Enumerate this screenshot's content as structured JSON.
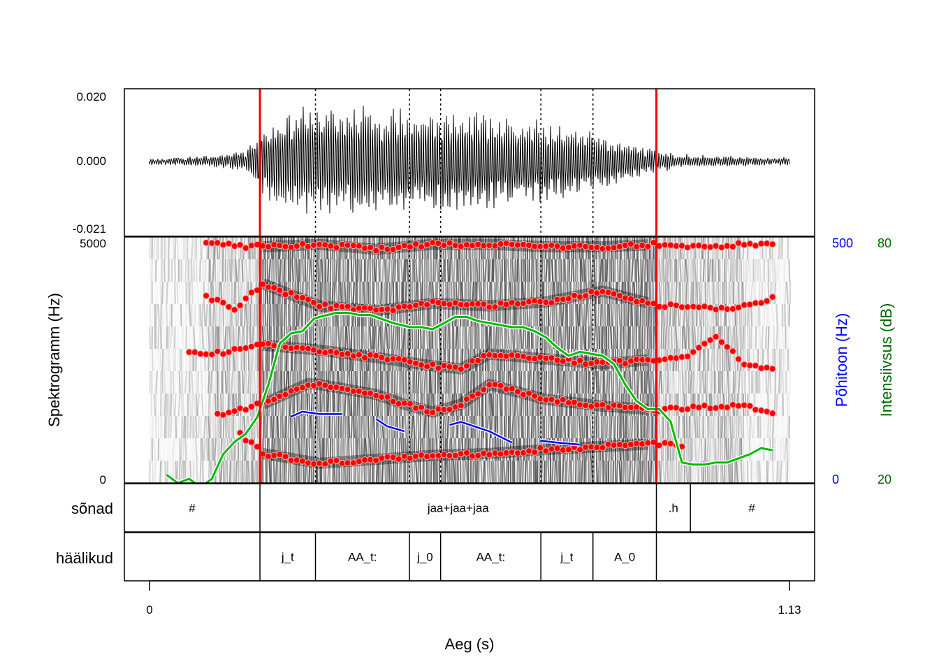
{
  "chart_data": {
    "type": "line",
    "x_axis": {
      "label": "Aeg (s)",
      "range": [
        0,
        1.13
      ],
      "ticks": [
        "0",
        "1.13"
      ]
    },
    "waveform": {
      "ticks": [
        "0.020",
        "0.000",
        "-0.021"
      ],
      "ylim": [
        -0.021,
        0.02
      ]
    },
    "spectrogram": {
      "ylabel": "Spektrogramm (Hz)",
      "ylim": [
        0,
        5000
      ],
      "ticks": [
        "5000",
        "0"
      ],
      "formant_color": "#ff0000",
      "formants": [
        {
          "x": [
            0.16,
            0.2,
            0.3,
            0.4,
            0.5,
            0.6,
            0.7,
            0.8,
            0.9,
            0.94
          ],
          "y": [
            1000,
            600,
            400,
            480,
            560,
            600,
            680,
            740,
            800,
            780
          ]
        },
        {
          "x": [
            0.12,
            0.2,
            0.28,
            0.3,
            0.4,
            0.45,
            0.5,
            0.55,
            0.6,
            0.7,
            0.8,
            0.9,
            1.0,
            1.05,
            1.1
          ],
          "y": [
            1400,
            1600,
            2020,
            2000,
            1800,
            1600,
            1440,
            1600,
            2000,
            1700,
            1560,
            1480,
            1560,
            1600,
            1400
          ]
        },
        {
          "x": [
            0.07,
            0.1,
            0.2,
            0.3,
            0.4,
            0.5,
            0.55,
            0.6,
            0.7,
            0.8,
            0.9,
            0.95,
            1.0,
            1.05,
            1.1
          ],
          "y": [
            2700,
            2600,
            2800,
            2700,
            2550,
            2380,
            2320,
            2620,
            2520,
            2420,
            2520,
            2580,
            3000,
            2400,
            2350
          ]
        },
        {
          "x": [
            0.1,
            0.15,
            0.2,
            0.3,
            0.4,
            0.5,
            0.6,
            0.7,
            0.8,
            0.9,
            1.0,
            1.05,
            1.1
          ],
          "y": [
            3800,
            3550,
            4050,
            3600,
            3500,
            3650,
            3600,
            3680,
            3900,
            3600,
            3550,
            3600,
            3750
          ]
        },
        {
          "x": [
            0.1,
            0.2,
            0.3,
            0.4,
            0.5,
            0.6,
            0.7,
            0.8,
            0.9,
            1.0,
            1.05,
            1.1
          ],
          "y": [
            4850,
            4800,
            4850,
            4750,
            4850,
            4850,
            4800,
            4800,
            4850,
            4800,
            4850,
            4850
          ]
        }
      ]
    },
    "pitch": {
      "label": "Põhitoon (Hz)",
      "ylim": [
        0,
        500
      ],
      "ticks": [
        "500",
        "0"
      ],
      "color": "#0000ff",
      "segments": [
        {
          "x": [
            0.25,
            0.27,
            0.3,
            0.34
          ],
          "y": [
            135,
            145,
            140,
            140
          ]
        },
        {
          "x": [
            0.4,
            0.42,
            0.45
          ],
          "y": [
            130,
            115,
            105
          ]
        },
        {
          "x": [
            0.53,
            0.55,
            0.6,
            0.64
          ],
          "y": [
            118,
            124,
            105,
            82
          ]
        },
        {
          "x": [
            0.69,
            0.72,
            0.76
          ],
          "y": [
            86,
            82,
            78
          ]
        }
      ]
    },
    "intensity": {
      "label": "Intensiivsus (dB)",
      "ylim": [
        20,
        80
      ],
      "ticks": [
        "80",
        "20"
      ],
      "color": "#00bb00",
      "x": [
        0.03,
        0.05,
        0.07,
        0.09,
        0.11,
        0.13,
        0.15,
        0.17,
        0.19,
        0.21,
        0.23,
        0.25,
        0.27,
        0.29,
        0.3,
        0.33,
        0.35,
        0.37,
        0.39,
        0.41,
        0.43,
        0.46,
        0.48,
        0.5,
        0.52,
        0.54,
        0.56,
        0.58,
        0.6,
        0.62,
        0.64,
        0.66,
        0.68,
        0.7,
        0.72,
        0.74,
        0.76,
        0.78,
        0.8,
        0.82,
        0.84,
        0.86,
        0.88,
        0.9,
        0.92,
        0.94,
        0.96,
        0.98,
        1.0,
        1.02,
        1.04,
        1.06,
        1.08,
        1.1
      ],
      "y": [
        22,
        20,
        21,
        19,
        21,
        27,
        30,
        32,
        36,
        44,
        54,
        56.5,
        57,
        60,
        60.5,
        61.5,
        61.5,
        61,
        61,
        60,
        59,
        58,
        58,
        57.5,
        59,
        60.5,
        60.5,
        59.5,
        59,
        58.5,
        58,
        58,
        57,
        55.5,
        53,
        51,
        52,
        51.5,
        51,
        49,
        44,
        40,
        38,
        38,
        35,
        25,
        24.5,
        24.5,
        25,
        25,
        26,
        27,
        28.5,
        28
      ]
    },
    "boundaries": {
      "main_color": "#ff0000",
      "main_x": [
        0.195,
        0.895
      ],
      "sub_x": [
        0.293,
        0.459,
        0.514,
        0.691,
        0.783
      ]
    },
    "tiers": [
      {
        "name": "sõnad",
        "intervals": [
          {
            "start": -0.045,
            "end": 0.195,
            "label": "#"
          },
          {
            "start": 0.195,
            "end": 0.895,
            "label": "jaa+jaa+jaa"
          },
          {
            "start": 0.895,
            "end": 0.955,
            "label": ".h"
          },
          {
            "start": 0.955,
            "end": 1.172,
            "label": "#"
          }
        ]
      },
      {
        "name": "häälikud",
        "intervals": [
          {
            "start": -0.045,
            "end": 0.195,
            "label": ""
          },
          {
            "start": 0.195,
            "end": 0.293,
            "label": "j_t"
          },
          {
            "start": 0.293,
            "end": 0.459,
            "label": "AA_t:"
          },
          {
            "start": 0.459,
            "end": 0.514,
            "label": "j_0"
          },
          {
            "start": 0.514,
            "end": 0.691,
            "label": "AA_t:"
          },
          {
            "start": 0.691,
            "end": 0.783,
            "label": "j_t"
          },
          {
            "start": 0.783,
            "end": 0.895,
            "label": "A_0"
          },
          {
            "start": 0.895,
            "end": 1.172,
            "label": ""
          }
        ]
      }
    ]
  }
}
